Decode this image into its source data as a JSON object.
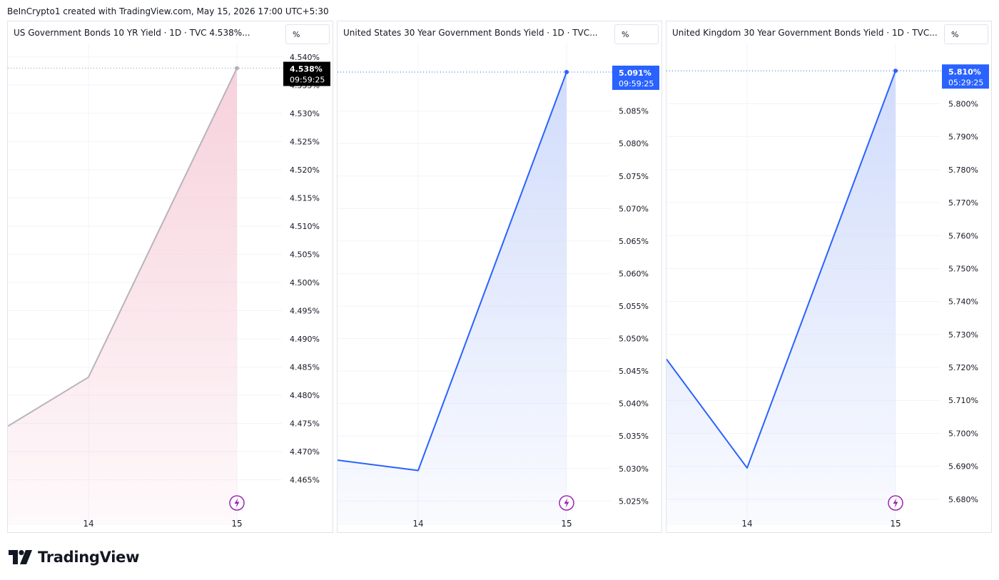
{
  "header": {
    "text": "BeInCrypto1 created with TradingView.com, May 15, 2026 17:00 UTC+5:30"
  },
  "footer": {
    "brand": "TradingView"
  },
  "colors": {
    "blue": "#2962ff",
    "pink": "#f7d1dc",
    "black": "#000000",
    "grid": "#f0f3fa"
  },
  "panels": [
    {
      "title": "US Government Bonds 10 YR Yield · 1D · TVC  4.538%...",
      "unit": "%"
    },
    {
      "title": "United States 30 Year Government Bonds Yield · 1D · TVC...",
      "unit": "%"
    },
    {
      "title": "United Kingdom 30 Year Government Bonds Yield · 1D · TVC...",
      "unit": "%"
    }
  ],
  "chart_data": [
    {
      "type": "area",
      "title": "US Government Bonds 10 YR Yield · 1D · TVC  4.538%...",
      "x": [
        "13",
        "14",
        "15"
      ],
      "x_tick_labels": [
        "14",
        "15"
      ],
      "values": [
        4.4745,
        4.4832,
        4.538
      ],
      "ylim": [
        4.4595,
        4.5425
      ],
      "y_ticks": [
        4.465,
        4.47,
        4.475,
        4.48,
        4.485,
        4.49,
        4.495,
        4.5,
        4.505,
        4.51,
        4.515,
        4.52,
        4.525,
        4.53,
        4.535,
        4.54
      ],
      "tick_decimals": 3,
      "last_price_label": "4.538%",
      "countdown": "09:59:25",
      "line_color": "#b8b3bb",
      "fill_top": "#f7d1dc",
      "label_bg": "#000000",
      "grid": true
    },
    {
      "type": "area",
      "title": "United States 30 Year Government Bonds Yield · 1D · TVC...",
      "x": [
        "13",
        "14",
        "15"
      ],
      "x_tick_labels": [
        "14",
        "15"
      ],
      "values": [
        5.0313,
        5.0297,
        5.091
      ],
      "ylim": [
        5.0235,
        5.0955
      ],
      "y_ticks": [
        5.025,
        5.03,
        5.035,
        5.04,
        5.045,
        5.05,
        5.055,
        5.06,
        5.065,
        5.07,
        5.075,
        5.08,
        5.085
      ],
      "tick_decimals": 3,
      "last_price_label": "5.091%",
      "countdown": "09:59:25",
      "line_color": "#2962ff",
      "fill_top": "#d1dcfb",
      "label_bg": "#2962ff",
      "grid": true
    },
    {
      "type": "area",
      "title": "United Kingdom 30 Year Government Bonds Yield · 1D · TVC...",
      "x": [
        "13",
        "14",
        "15"
      ],
      "x_tick_labels": [
        "14",
        "15"
      ],
      "values": [
        5.7225,
        5.6895,
        5.81
      ],
      "ylim": [
        5.6765,
        5.8185
      ],
      "y_ticks": [
        5.68,
        5.69,
        5.7,
        5.71,
        5.72,
        5.73,
        5.74,
        5.75,
        5.76,
        5.77,
        5.78,
        5.79,
        5.8
      ],
      "tick_decimals": 3,
      "last_price_label": "5.810%",
      "countdown": "05:29:25",
      "line_color": "#2962ff",
      "fill_top": "#d1dcfb",
      "label_bg": "#2962ff",
      "grid": true
    }
  ]
}
